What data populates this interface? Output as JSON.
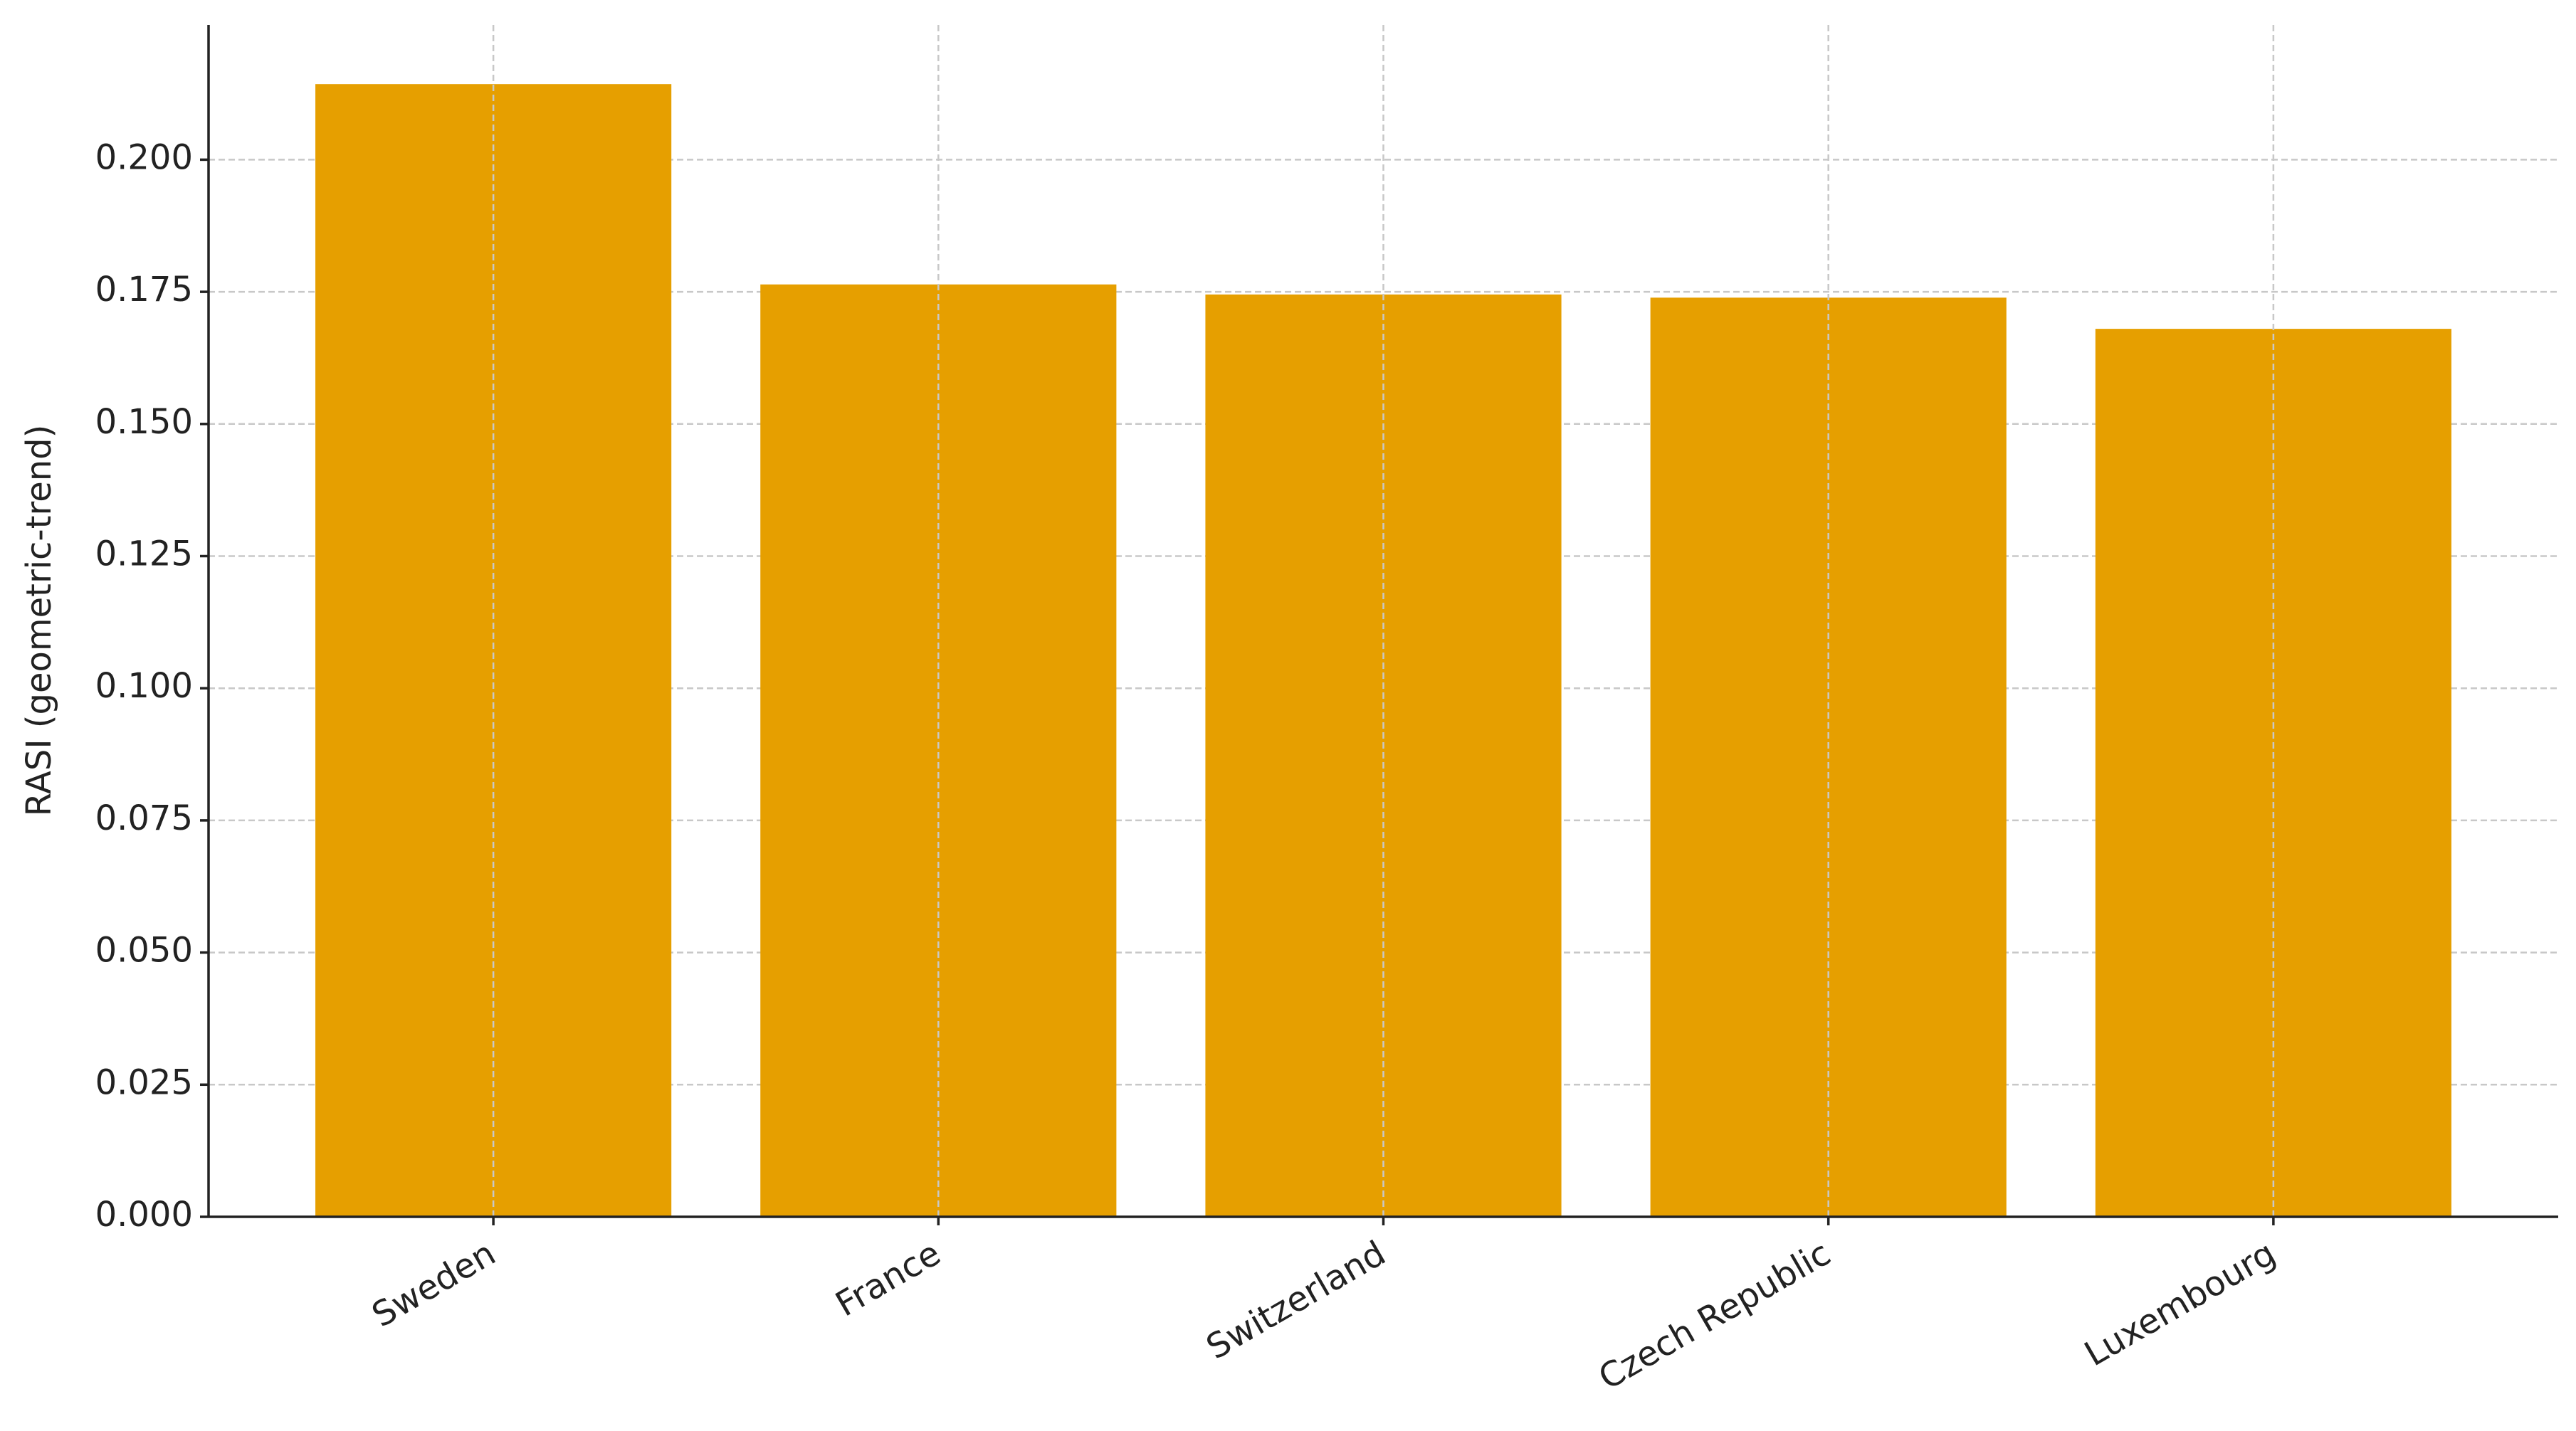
{
  "chart_data": {
    "type": "bar",
    "y_label": "RASI (geometric-trend)",
    "categories": [
      "Sweden",
      "France",
      "Switzerland",
      "Czech Republic",
      "Luxembourg"
    ],
    "values": [
      0.2143,
      0.1764,
      0.1745,
      0.1739,
      0.168
    ],
    "color": "#e69f00",
    "ylim": [
      0,
      0.2255
    ],
    "yticks": [
      {
        "value": 0,
        "label": "0.000"
      },
      {
        "value": 0.025,
        "label": "0.025"
      },
      {
        "value": 0.05,
        "label": "0.050"
      },
      {
        "value": 0.075,
        "label": "0.075"
      },
      {
        "value": 0.1,
        "label": "0.100"
      },
      {
        "value": 0.125,
        "label": "0.125"
      },
      {
        "value": 0.15,
        "label": "0.150"
      },
      {
        "value": 0.175,
        "label": "0.175"
      },
      {
        "value": 0.2,
        "label": "0.200"
      }
    ],
    "grid": true
  }
}
